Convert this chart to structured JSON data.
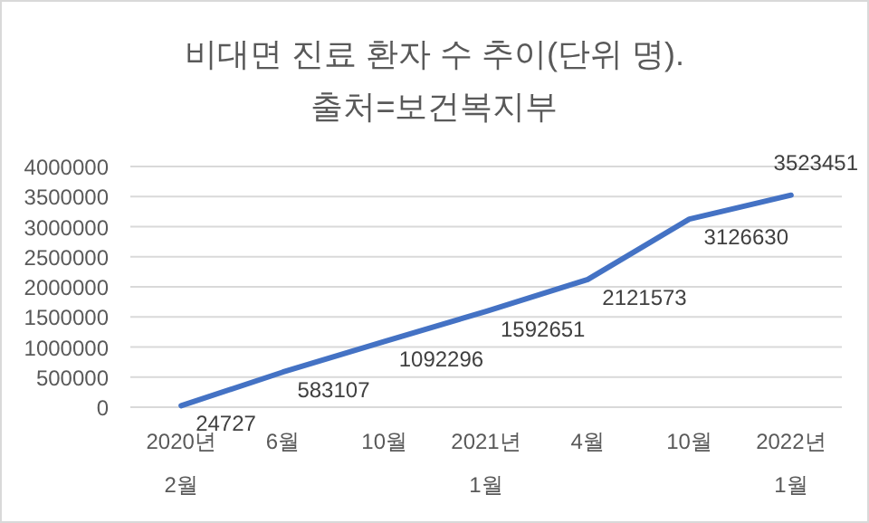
{
  "chart_data": {
    "type": "line",
    "title": "비대면 진료 환자 수 추이(단위 명).",
    "subtitle": "출처=보건복지부",
    "categories": [
      "2020년\n2월",
      "6월",
      "10월",
      "2021년\n1월",
      "4월",
      "10월",
      "2022년\n1월"
    ],
    "series": [
      {
        "color": "#4472c4",
        "values": [
          24727,
          583107,
          1092296,
          1592651,
          2121573,
          3126630,
          3523451
        ]
      }
    ],
    "ylim": [
      0,
      4000000
    ],
    "yticks": [
      0,
      500000,
      1000000,
      1500000,
      2000000,
      2500000,
      3000000,
      3500000,
      4000000
    ],
    "grid": "y",
    "data_labels": true,
    "marker": "none",
    "line_style": "solid"
  }
}
